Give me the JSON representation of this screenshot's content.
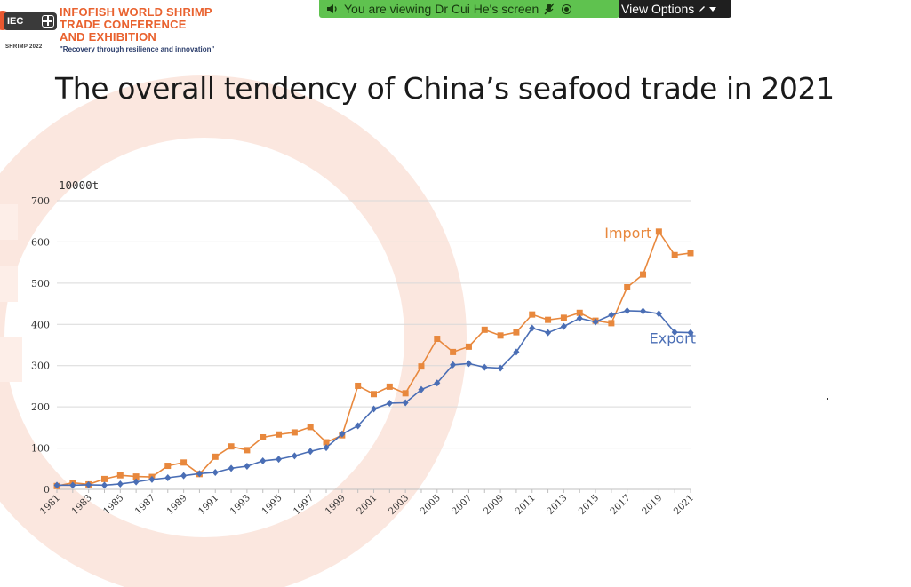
{
  "branding": {
    "logo_chip": "IEC",
    "logo_caption": "SHRIMP 2022",
    "title_lines": [
      "INFOFISH WORLD SHRIMP",
      "TRADE CONFERENCE",
      "AND EXHIBITION"
    ],
    "tagline": "\"Recovery through resilience and innovation\"",
    "accent": "#e9622f"
  },
  "share_banner": {
    "text": "You are viewing Dr Cui He's screen",
    "color": "#5fc24f",
    "icons": [
      "speaker-icon",
      "mic-off-icon",
      "record-icon"
    ]
  },
  "view_options": {
    "label": "View Options",
    "icons": [
      "pen-icon",
      "chevron-down-icon"
    ]
  },
  "slide": {
    "title": "The overall tendency of  China’s seafood trade in 2021"
  },
  "chart_data": {
    "type": "line",
    "unit_label": "10000t",
    "ylim": [
      0,
      700
    ],
    "yticks": [
      0,
      100,
      200,
      300,
      400,
      500,
      600,
      700
    ],
    "xlim": [
      1981,
      2021
    ],
    "xticks": [
      1981,
      1983,
      1985,
      1987,
      1989,
      1991,
      1993,
      1995,
      1997,
      1999,
      2001,
      2003,
      2005,
      2007,
      2009,
      2011,
      2013,
      2015,
      2017,
      2019,
      2021
    ],
    "grid": true,
    "x": [
      1981,
      1982,
      1983,
      1984,
      1985,
      1986,
      1987,
      1988,
      1989,
      1990,
      1991,
      1992,
      1993,
      1994,
      1995,
      1996,
      1997,
      1998,
      1999,
      2000,
      2001,
      2002,
      2003,
      2004,
      2005,
      2006,
      2007,
      2008,
      2009,
      2010,
      2011,
      2012,
      2013,
      2014,
      2015,
      2016,
      2017,
      2018,
      2019,
      2020,
      2021
    ],
    "series": [
      {
        "name": "Import",
        "color": "#e8883d",
        "marker": "square",
        "label_position": "upper",
        "values": [
          8,
          16,
          12,
          25,
          34,
          31,
          30,
          57,
          65,
          37,
          79,
          104,
          95,
          126,
          133,
          138,
          151,
          114,
          131,
          251,
          231,
          249,
          233,
          298,
          365,
          333,
          346,
          387,
          373,
          381,
          424,
          411,
          416,
          428,
          409,
          403,
          490,
          521,
          625,
          568,
          573
        ]
      },
      {
        "name": "Export",
        "color": "#4a6eb5",
        "marker": "diamond",
        "label_position": "lower",
        "values": [
          10,
          10,
          11,
          10,
          13,
          18,
          24,
          28,
          33,
          38,
          41,
          51,
          56,
          69,
          73,
          81,
          92,
          101,
          134,
          154,
          195,
          209,
          210,
          242,
          258,
          302,
          305,
          296,
          294,
          333,
          391,
          380,
          395,
          415,
          406,
          423,
          433,
          432,
          426,
          381,
          380
        ]
      }
    ]
  }
}
